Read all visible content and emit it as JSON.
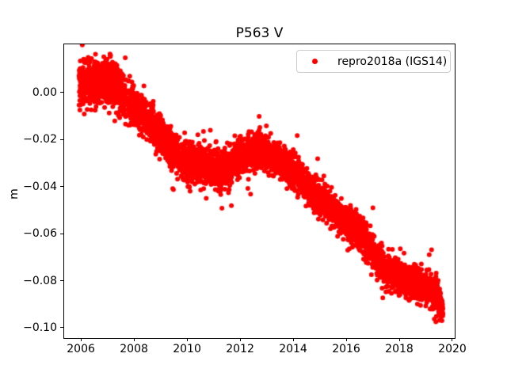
{
  "figure": {
    "background": "#ffffff"
  },
  "colors": {
    "axis": "#000000",
    "text": "#000000",
    "series_red": "#ff0000",
    "legend_border": "#cccccc"
  },
  "legend": {
    "label": "repro2018a (IGS14)",
    "marker_color": "#ff0000",
    "border_color": "#cccccc",
    "position": "upper right"
  },
  "chart_data": {
    "type": "scatter",
    "title": "P563 V",
    "xlabel": "",
    "ylabel": "m",
    "xlim": [
      2005.37,
      2020.09
    ],
    "ylim": [
      -0.1044,
      0.0205
    ],
    "grid": false,
    "legend_position": "upper right",
    "x_ticks": {
      "values": [
        2006,
        2008,
        2010,
        2012,
        2014,
        2016,
        2018,
        2020
      ],
      "labels": [
        "2006",
        "2008",
        "2010",
        "2012",
        "2014",
        "2016",
        "2018",
        "2020"
      ]
    },
    "y_ticks": {
      "values": [
        0.0,
        -0.02,
        -0.04,
        -0.06,
        -0.08,
        -0.1
      ],
      "labels": [
        "0.00",
        "−0.02",
        "−0.04",
        "−0.06",
        "−0.08",
        "−0.10"
      ]
    },
    "series": [
      {
        "name": "repro2018a (IGS14)",
        "color": "#ff0000",
        "marker": "dot",
        "marker_radius_px": 3,
        "t_start": 2005.93,
        "t_end": 2019.65,
        "samples_per_year": 365,
        "noise_seed": 42,
        "noise_bands": [
          {
            "until": 2007.6,
            "std": 0.0048
          },
          {
            "until": 2012.0,
            "std": 0.004
          },
          {
            "until": 2020.0,
            "std": 0.0034
          }
        ],
        "heavy_tail_fraction": 0.03,
        "heavy_tail_scale": 2.0,
        "gaps": [
          [
            2007.7,
            2007.78
          ]
        ],
        "trend_nodes": [
          [
            2005.93,
            0.0035
          ],
          [
            2006.5,
            0.004
          ],
          [
            2007.05,
            0.0055
          ],
          [
            2007.3,
            0.002
          ],
          [
            2007.8,
            -0.004
          ],
          [
            2008.3,
            -0.01
          ],
          [
            2009.0,
            -0.017
          ],
          [
            2009.6,
            -0.027
          ],
          [
            2010.0,
            -0.0295
          ],
          [
            2010.6,
            -0.0305
          ],
          [
            2011.2,
            -0.0325
          ],
          [
            2011.6,
            -0.0315
          ],
          [
            2012.1,
            -0.0265
          ],
          [
            2012.45,
            -0.0245
          ],
          [
            2012.85,
            -0.0245
          ],
          [
            2013.4,
            -0.029
          ],
          [
            2014.0,
            -0.033
          ],
          [
            2014.6,
            -0.0405
          ],
          [
            2015.2,
            -0.0465
          ],
          [
            2015.8,
            -0.053
          ],
          [
            2016.4,
            -0.059
          ],
          [
            2017.0,
            -0.067
          ],
          [
            2017.5,
            -0.0755
          ],
          [
            2018.0,
            -0.079
          ],
          [
            2018.6,
            -0.0815
          ],
          [
            2019.1,
            -0.083
          ],
          [
            2019.4,
            -0.0865
          ],
          [
            2019.65,
            -0.0925
          ]
        ],
        "outliers": [
          [
            2006.55,
            0.0163
          ],
          [
            2007.12,
            0.0158
          ],
          [
            2010.62,
            -0.0165
          ],
          [
            2010.88,
            -0.016
          ],
          [
            2012.72,
            -0.0101
          ],
          [
            2016.95,
            -0.0775
          ],
          [
            2018.18,
            -0.0683
          ],
          [
            2019.13,
            -0.069
          ],
          [
            2019.38,
            -0.0975
          ],
          [
            2019.52,
            -0.0968
          ]
        ]
      }
    ]
  }
}
